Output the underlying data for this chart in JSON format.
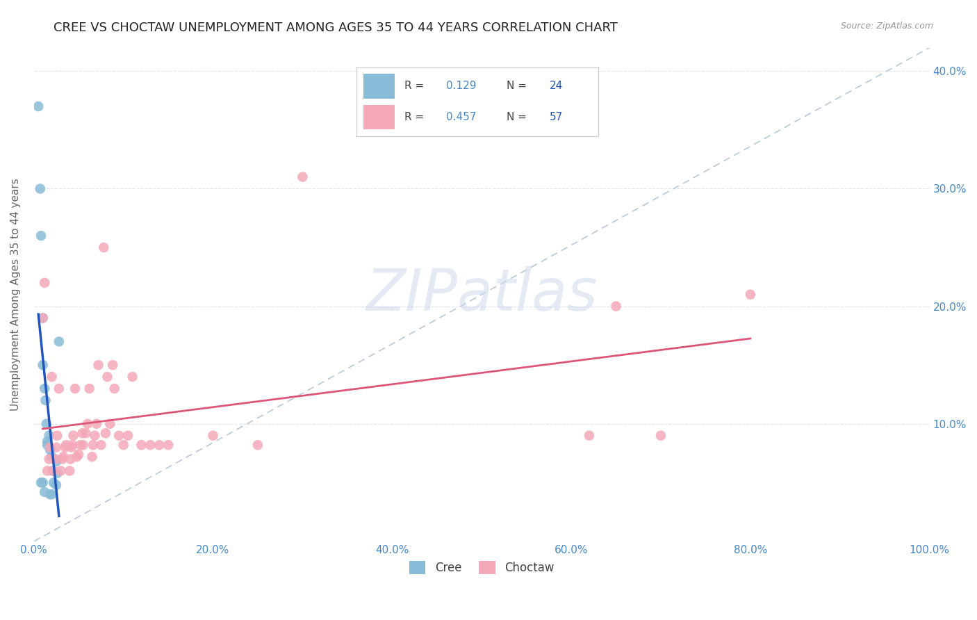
{
  "title": "CREE VS CHOCTAW UNEMPLOYMENT AMONG AGES 35 TO 44 YEARS CORRELATION CHART",
  "source": "Source: ZipAtlas.com",
  "ylabel": "Unemployment Among Ages 35 to 44 years",
  "xlim": [
    0.0,
    1.0
  ],
  "ylim": [
    0.0,
    0.42
  ],
  "xticks": [
    0.0,
    0.2,
    0.4,
    0.6,
    0.8,
    1.0
  ],
  "xticklabels": [
    "0.0%",
    "20.0%",
    "40.0%",
    "60.0%",
    "80.0%",
    "100.0%"
  ],
  "yticks": [
    0.0,
    0.1,
    0.2,
    0.3,
    0.4
  ],
  "yticklabels_right": [
    "",
    "10.0%",
    "20.0%",
    "30.0%",
    "40.0%"
  ],
  "cree_color": "#88bbd8",
  "choctaw_color": "#f4a8b8",
  "cree_line_color": "#2255bb",
  "choctaw_line_color": "#dd5577",
  "ref_line_color": "#b8c8d8",
  "tick_color": "#4488cc",
  "cree_R": 0.129,
  "cree_N": 24,
  "choctaw_R": 0.457,
  "choctaw_N": 57,
  "cree_x": [
    0.005,
    0.007,
    0.008,
    0.01,
    0.01,
    0.012,
    0.013,
    0.014,
    0.015,
    0.015,
    0.017,
    0.018,
    0.02,
    0.021,
    0.022,
    0.025,
    0.026,
    0.028,
    0.01,
    0.012,
    0.018,
    0.02,
    0.025,
    0.008
  ],
  "cree_y": [
    0.37,
    0.3,
    0.26,
    0.19,
    0.15,
    0.13,
    0.12,
    0.1,
    0.085,
    0.082,
    0.09,
    0.078,
    0.072,
    0.06,
    0.05,
    0.068,
    0.058,
    0.17,
    0.05,
    0.042,
    0.04,
    0.04,
    0.048,
    0.05
  ],
  "choctaw_x": [
    0.01,
    0.012,
    0.015,
    0.017,
    0.018,
    0.02,
    0.022,
    0.024,
    0.025,
    0.026,
    0.028,
    0.03,
    0.032,
    0.033,
    0.035,
    0.036,
    0.04,
    0.041,
    0.042,
    0.043,
    0.044,
    0.046,
    0.048,
    0.05,
    0.052,
    0.054,
    0.055,
    0.058,
    0.06,
    0.062,
    0.065,
    0.066,
    0.068,
    0.07,
    0.072,
    0.075,
    0.078,
    0.08,
    0.082,
    0.085,
    0.088,
    0.09,
    0.095,
    0.1,
    0.105,
    0.11,
    0.12,
    0.13,
    0.14,
    0.15,
    0.2,
    0.25,
    0.3,
    0.62,
    0.65,
    0.7,
    0.8
  ],
  "choctaw_y": [
    0.19,
    0.22,
    0.06,
    0.07,
    0.08,
    0.14,
    0.06,
    0.07,
    0.08,
    0.09,
    0.13,
    0.06,
    0.07,
    0.072,
    0.08,
    0.082,
    0.06,
    0.07,
    0.08,
    0.082,
    0.09,
    0.13,
    0.072,
    0.074,
    0.082,
    0.092,
    0.082,
    0.092,
    0.1,
    0.13,
    0.072,
    0.082,
    0.09,
    0.1,
    0.15,
    0.082,
    0.25,
    0.092,
    0.14,
    0.1,
    0.15,
    0.13,
    0.09,
    0.082,
    0.09,
    0.14,
    0.082,
    0.082,
    0.082,
    0.082,
    0.09,
    0.082,
    0.31,
    0.09,
    0.2,
    0.09,
    0.21
  ],
  "watermark_text": "ZIPatlas",
  "watermark_color": "#ccdaec",
  "background_color": "#ffffff",
  "grid_color": "#dce4ef",
  "title_fontsize": 13,
  "tick_fontsize": 11,
  "legend_fontsize": 12,
  "ylabel_fontsize": 11
}
